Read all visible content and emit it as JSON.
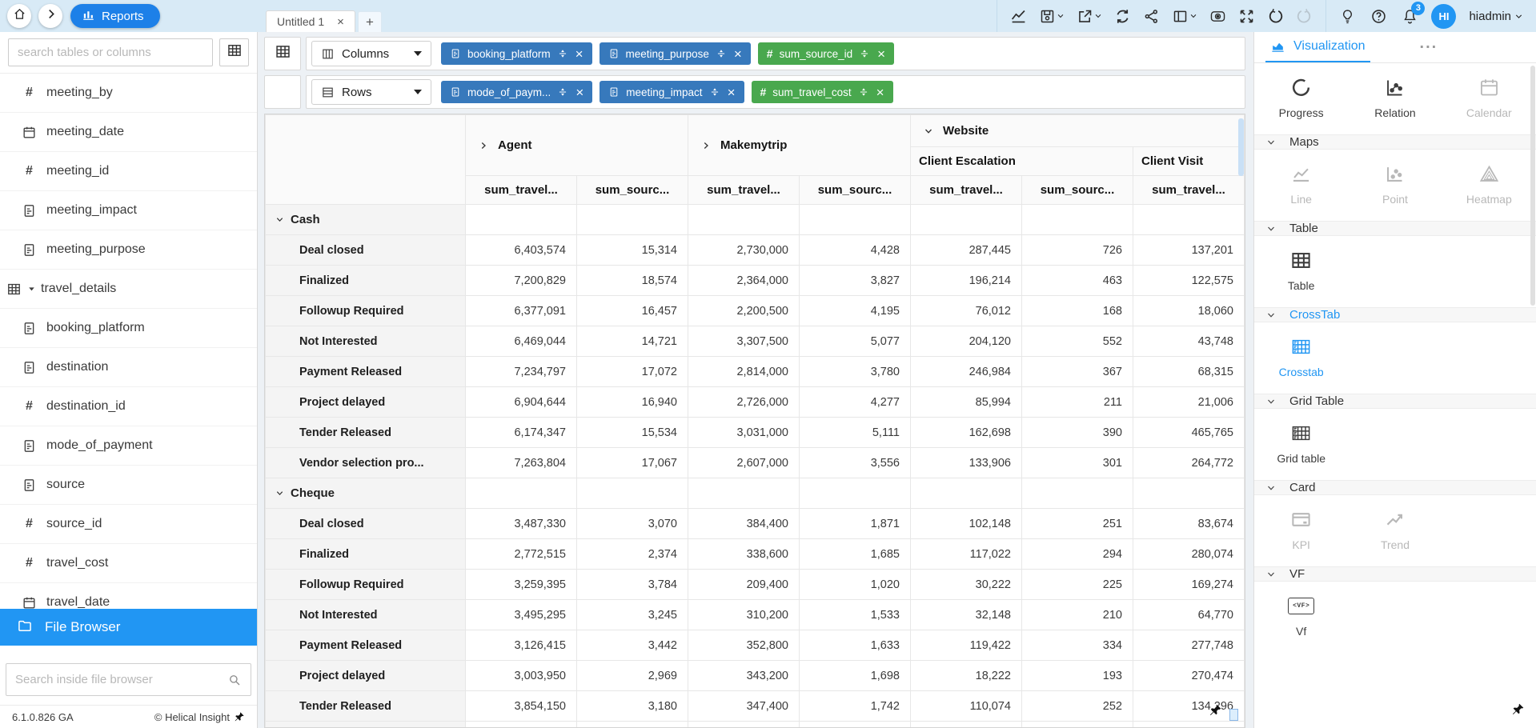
{
  "topbar": {
    "reports_label": "Reports",
    "tools": [
      {
        "icon": "chart-line-icon"
      },
      {
        "icon": "save-icon",
        "dropdown": true
      },
      {
        "icon": "export-icon",
        "dropdown": true
      },
      {
        "icon": "refresh-icon"
      },
      {
        "icon": "share-icon"
      },
      {
        "icon": "layout-icon",
        "dropdown": true
      },
      {
        "icon": "eye-icon"
      },
      {
        "icon": "fullscreen-icon"
      },
      {
        "icon": "undo-icon"
      },
      {
        "icon": "redo-icon",
        "disabled": true
      }
    ],
    "utils": [
      {
        "icon": "bulb-icon"
      },
      {
        "icon": "help-icon"
      },
      {
        "icon": "bell-icon",
        "badge": "3"
      }
    ],
    "user": {
      "initials": "HI",
      "name": "hiadmin"
    }
  },
  "tabs": {
    "active_label": "Untitled 1",
    "close_glyph": "×",
    "add_label": "+"
  },
  "sidebar": {
    "search_placeholder": "search tables or columns",
    "items": [
      {
        "icon": "number-icon",
        "label": "meeting_by"
      },
      {
        "icon": "calendar-icon",
        "label": "meeting_date"
      },
      {
        "icon": "number-icon",
        "label": "meeting_id"
      },
      {
        "icon": "doc-icon",
        "label": "meeting_impact"
      },
      {
        "icon": "doc-icon",
        "label": "meeting_purpose"
      },
      {
        "icon": "table-icon",
        "label": "travel_details",
        "group": true
      },
      {
        "icon": "doc-icon",
        "label": "booking_platform"
      },
      {
        "icon": "doc-icon",
        "label": "destination"
      },
      {
        "icon": "number-icon",
        "label": "destination_id"
      },
      {
        "icon": "doc-icon",
        "label": "mode_of_payment"
      },
      {
        "icon": "doc-icon",
        "label": "source"
      },
      {
        "icon": "number-icon",
        "label": "source_id"
      },
      {
        "icon": "number-icon",
        "label": "travel_cost"
      },
      {
        "icon": "calendar-icon",
        "label": "travel_date"
      }
    ],
    "file_browser_label": "File Browser",
    "file_search_placeholder": "Search inside file browser",
    "version": "6.1.0.826 GA",
    "copyright": "© Helical Insight"
  },
  "shelves": {
    "columns_label": "Columns",
    "rows_label": "Rows",
    "columns_pills": [
      {
        "label": "booking_platform",
        "type": "dimension"
      },
      {
        "label": "meeting_purpose",
        "type": "dimension"
      },
      {
        "label": "sum_source_id",
        "type": "measure"
      }
    ],
    "rows_pills": [
      {
        "label": "mode_of_paym...",
        "type": "dimension"
      },
      {
        "label": "meeting_impact",
        "type": "dimension"
      },
      {
        "label": "sum_travel_cost",
        "type": "measure"
      }
    ]
  },
  "crosstab": {
    "column_groups": [
      {
        "label": "Agent",
        "chevron": "right",
        "span": 2
      },
      {
        "label": "Makemytrip",
        "chevron": "right",
        "span": 2
      },
      {
        "label": "Website",
        "chevron": "down",
        "span": 3,
        "children": [
          {
            "label": "Client Escalation",
            "span": 2
          },
          {
            "label": "Client Visit",
            "span": 1
          }
        ]
      }
    ],
    "measure_headers": [
      "sum_travel...",
      "sum_sourc...",
      "sum_travel...",
      "sum_sourc...",
      "sum_travel...",
      "sum_sourc...",
      "sum_travel..."
    ],
    "groups": [
      {
        "label": "Cash",
        "rows": [
          {
            "label": "Deal closed",
            "values": [
              "6,403,574",
              "15,314",
              "2,730,000",
              "4,428",
              "287,445",
              "726",
              "137,201"
            ]
          },
          {
            "label": "Finalized",
            "values": [
              "7,200,829",
              "18,574",
              "2,364,000",
              "3,827",
              "196,214",
              "463",
              "122,575"
            ]
          },
          {
            "label": "Followup Required",
            "values": [
              "6,377,091",
              "16,457",
              "2,200,500",
              "4,195",
              "76,012",
              "168",
              "18,060"
            ]
          },
          {
            "label": "Not Interested",
            "values": [
              "6,469,044",
              "14,721",
              "3,307,500",
              "5,077",
              "204,120",
              "552",
              "43,748"
            ]
          },
          {
            "label": "Payment Released",
            "values": [
              "7,234,797",
              "17,072",
              "2,814,000",
              "3,780",
              "246,984",
              "367",
              "68,315"
            ]
          },
          {
            "label": "Project delayed",
            "values": [
              "6,904,644",
              "16,940",
              "2,726,000",
              "4,277",
              "85,994",
              "211",
              "21,006"
            ]
          },
          {
            "label": "Tender Released",
            "values": [
              "6,174,347",
              "15,534",
              "3,031,000",
              "5,111",
              "162,698",
              "390",
              "465,765"
            ]
          },
          {
            "label": "Vendor selection pro...",
            "values": [
              "7,263,804",
              "17,067",
              "2,607,000",
              "3,556",
              "133,906",
              "301",
              "264,772"
            ]
          }
        ]
      },
      {
        "label": "Cheque",
        "rows": [
          {
            "label": "Deal closed",
            "values": [
              "3,487,330",
              "3,070",
              "384,400",
              "1,871",
              "102,148",
              "251",
              "83,674"
            ]
          },
          {
            "label": "Finalized",
            "values": [
              "2,772,515",
              "2,374",
              "338,600",
              "1,685",
              "117,022",
              "294",
              "280,074"
            ]
          },
          {
            "label": "Followup Required",
            "values": [
              "3,259,395",
              "3,784",
              "209,400",
              "1,020",
              "30,222",
              "225",
              "169,274"
            ]
          },
          {
            "label": "Not Interested",
            "values": [
              "3,495,295",
              "3,245",
              "310,200",
              "1,533",
              "32,148",
              "210",
              "64,770"
            ]
          },
          {
            "label": "Payment Released",
            "values": [
              "3,126,415",
              "3,442",
              "352,800",
              "1,633",
              "119,422",
              "334",
              "277,748"
            ]
          },
          {
            "label": "Project delayed",
            "values": [
              "3,003,950",
              "2,969",
              "343,200",
              "1,698",
              "18,222",
              "193",
              "270,474"
            ]
          },
          {
            "label": "Tender Released",
            "values": [
              "3,854,150",
              "3,180",
              "347,400",
              "1,742",
              "110,074",
              "252",
              "134,296"
            ]
          }
        ]
      }
    ]
  },
  "viz_panel": {
    "title": "Visualization",
    "menu_glyph": "...",
    "groups": [
      {
        "header": null,
        "items": [
          {
            "label": "Progress",
            "icon": "progress-icon",
            "state": "enabled"
          },
          {
            "label": "Relation",
            "icon": "relation-icon",
            "state": "enabled"
          },
          {
            "label": "Calendar",
            "icon": "calendar-viz-icon",
            "state": "disabled"
          }
        ]
      },
      {
        "header": "Maps",
        "items": [
          {
            "label": "Line",
            "icon": "line-viz-icon",
            "state": "disabled"
          },
          {
            "label": "Point",
            "icon": "point-viz-icon",
            "state": "disabled"
          },
          {
            "label": "Heatmap",
            "icon": "heatmap-viz-icon",
            "state": "disabled"
          }
        ]
      },
      {
        "header": "Table",
        "items": [
          {
            "label": "Table",
            "icon": "table-viz-icon",
            "state": "enabled"
          }
        ]
      },
      {
        "header": "CrossTab",
        "header_active": true,
        "items": [
          {
            "label": "Crosstab",
            "icon": "crosstab-icon",
            "state": "active"
          }
        ]
      },
      {
        "header": "Grid Table",
        "items": [
          {
            "label": "Grid table",
            "icon": "gridtable-icon",
            "state": "enabled"
          }
        ]
      },
      {
        "header": "Card",
        "items": [
          {
            "label": "KPI",
            "icon": "kpi-icon",
            "state": "disabled"
          },
          {
            "label": "Trend",
            "icon": "trend-icon",
            "state": "disabled"
          }
        ]
      },
      {
        "header": "VF",
        "items": [
          {
            "label": "Vf",
            "icon": "vf-icon",
            "icon_text": "<VF>",
            "state": "enabled"
          }
        ]
      }
    ]
  }
}
